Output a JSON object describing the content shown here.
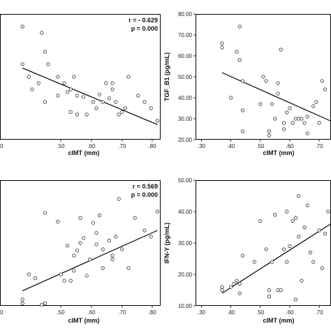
{
  "chart_data": [
    {
      "type": "scatter",
      "panel": "top-left",
      "xlabel": "cIMT (mm)",
      "ylabel": "",
      "xlim": [
        0.3,
        0.8
      ],
      "ylim": [
        0,
        100
      ],
      "xticks": [
        ".50",
        ".60",
        ".70",
        ".80"
      ],
      "yticks": [],
      "annotations": {
        "r": "r = - 0.629",
        "p": "p = 0.000"
      },
      "points": [
        [
          0.37,
          90
        ],
        [
          0.43,
          85
        ],
        [
          0.44,
          70
        ],
        [
          0.45,
          60
        ],
        [
          0.37,
          60
        ],
        [
          0.39,
          50
        ],
        [
          0.4,
          40
        ],
        [
          0.42,
          45
        ],
        [
          0.44,
          30
        ],
        [
          0.48,
          50
        ],
        [
          0.5,
          45
        ],
        [
          0.51,
          38
        ],
        [
          0.52,
          40
        ],
        [
          0.53,
          50
        ],
        [
          0.54,
          35
        ],
        [
          0.56,
          34
        ],
        [
          0.57,
          20
        ],
        [
          0.59,
          30
        ],
        [
          0.6,
          25
        ],
        [
          0.61,
          36
        ],
        [
          0.62,
          30
        ],
        [
          0.63,
          45
        ],
        [
          0.64,
          33
        ],
        [
          0.65,
          40
        ],
        [
          0.65,
          45
        ],
        [
          0.66,
          30
        ],
        [
          0.67,
          20
        ],
        [
          0.68,
          22
        ],
        [
          0.7,
          50
        ],
        [
          0.73,
          35
        ],
        [
          0.75,
          30
        ],
        [
          0.77,
          25
        ],
        [
          0.79,
          15
        ],
        [
          0.54,
          20
        ],
        [
          0.48,
          35
        ],
        [
          0.52,
          22
        ],
        [
          0.69,
          25
        ]
      ],
      "fit": {
        "x": [
          0.37,
          0.79
        ],
        "y": [
          57,
          12
        ]
      }
    },
    {
      "type": "scatter",
      "panel": "top-right",
      "xlabel": "cIMT (mm)",
      "ylabel": "TGF_B1 (pg/mL)",
      "xlim": [
        0.28,
        0.74
      ],
      "ylim": [
        20,
        80
      ],
      "xticks": [
        ".30",
        ".40",
        ".50",
        ".60",
        ".70"
      ],
      "yticks": [
        "20.00",
        "30.00",
        "40.00",
        "50.00",
        "60.00",
        "70.00",
        "80.00"
      ],
      "points": [
        [
          0.37,
          66
        ],
        [
          0.37,
          64
        ],
        [
          0.4,
          40
        ],
        [
          0.42,
          62
        ],
        [
          0.43,
          74
        ],
        [
          0.43,
          58
        ],
        [
          0.44,
          48
        ],
        [
          0.44,
          34
        ],
        [
          0.44,
          24
        ],
        [
          0.5,
          37
        ],
        [
          0.51,
          50
        ],
        [
          0.52,
          48
        ],
        [
          0.53,
          24
        ],
        [
          0.53,
          22
        ],
        [
          0.54,
          37
        ],
        [
          0.55,
          30
        ],
        [
          0.56,
          42
        ],
        [
          0.56,
          47
        ],
        [
          0.57,
          63
        ],
        [
          0.58,
          28
        ],
        [
          0.58,
          25
        ],
        [
          0.59,
          33
        ],
        [
          0.6,
          35
        ],
        [
          0.61,
          28
        ],
        [
          0.62,
          30
        ],
        [
          0.63,
          30
        ],
        [
          0.64,
          30
        ],
        [
          0.65,
          28
        ],
        [
          0.66,
          31
        ],
        [
          0.68,
          36
        ],
        [
          0.69,
          38
        ],
        [
          0.7,
          28
        ],
        [
          0.71,
          48
        ],
        [
          0.72,
          44
        ],
        [
          0.66,
          23
        ]
      ],
      "fit": {
        "x": [
          0.37,
          0.74
        ],
        "y": [
          52,
          29
        ]
      }
    },
    {
      "type": "scatter",
      "panel": "bottom-left",
      "xlabel": "cIMT (mm)",
      "ylabel": "",
      "xlim": [
        0.3,
        0.8
      ],
      "ylim": [
        0,
        100
      ],
      "xticks": [
        ".50",
        ".60",
        ".70",
        ".80"
      ],
      "yticks": [],
      "annotations": {
        "r": "r = 0.569",
        "p": "p = 0.000"
      },
      "points": [
        [
          0.37,
          5
        ],
        [
          0.37,
          2
        ],
        [
          0.39,
          25
        ],
        [
          0.41,
          22
        ],
        [
          0.43,
          1
        ],
        [
          0.44,
          2
        ],
        [
          0.44,
          74
        ],
        [
          0.48,
          67
        ],
        [
          0.49,
          25
        ],
        [
          0.5,
          20
        ],
        [
          0.51,
          48
        ],
        [
          0.52,
          20
        ],
        [
          0.53,
          40
        ],
        [
          0.53,
          28
        ],
        [
          0.54,
          44
        ],
        [
          0.55,
          50
        ],
        [
          0.56,
          54
        ],
        [
          0.57,
          24
        ],
        [
          0.58,
          37
        ],
        [
          0.59,
          66
        ],
        [
          0.6,
          58
        ],
        [
          0.6,
          49
        ],
        [
          0.61,
          72
        ],
        [
          0.62,
          45
        ],
        [
          0.62,
          30
        ],
        [
          0.64,
          52
        ],
        [
          0.65,
          40
        ],
        [
          0.65,
          37
        ],
        [
          0.66,
          55
        ],
        [
          0.67,
          85
        ],
        [
          0.68,
          45
        ],
        [
          0.7,
          30
        ],
        [
          0.72,
          70
        ],
        [
          0.75,
          60
        ],
        [
          0.77,
          55
        ],
        [
          0.79,
          75
        ],
        [
          0.55,
          70
        ]
      ],
      "fit": {
        "x": [
          0.37,
          0.79
        ],
        "y": [
          12,
          60
        ]
      }
    },
    {
      "type": "scatter",
      "panel": "bottom-right",
      "xlabel": "cIMT (mm)",
      "ylabel": "IFN-Y (pg/mL)",
      "xlim": [
        0.28,
        0.74
      ],
      "ylim": [
        10,
        50
      ],
      "xticks": [
        ".30",
        ".40",
        ".50",
        ".60",
        ".70"
      ],
      "yticks": [
        "10.00",
        "20.00",
        "30.00",
        "40.00",
        "50.00"
      ],
      "points": [
        [
          0.37,
          15
        ],
        [
          0.37,
          16
        ],
        [
          0.4,
          16
        ],
        [
          0.41,
          17
        ],
        [
          0.42,
          18
        ],
        [
          0.43,
          14
        ],
        [
          0.43,
          17
        ],
        [
          0.44,
          26
        ],
        [
          0.5,
          37
        ],
        [
          0.52,
          28
        ],
        [
          0.53,
          13
        ],
        [
          0.53,
          15
        ],
        [
          0.54,
          24
        ],
        [
          0.55,
          39
        ],
        [
          0.56,
          15
        ],
        [
          0.57,
          15
        ],
        [
          0.58,
          28
        ],
        [
          0.59,
          24
        ],
        [
          0.59,
          40
        ],
        [
          0.6,
          29
        ],
        [
          0.61,
          37
        ],
        [
          0.62,
          38
        ],
        [
          0.63,
          45
        ],
        [
          0.63,
          32
        ],
        [
          0.64,
          18
        ],
        [
          0.65,
          35
        ],
        [
          0.66,
          42
        ],
        [
          0.67,
          27
        ],
        [
          0.68,
          24
        ],
        [
          0.7,
          34
        ],
        [
          0.71,
          22
        ],
        [
          0.72,
          33
        ],
        [
          0.73,
          40
        ],
        [
          0.74,
          40
        ],
        [
          0.62,
          12
        ],
        [
          0.48,
          24
        ]
      ],
      "fit": {
        "x": [
          0.37,
          0.74
        ],
        "y": [
          14,
          36
        ]
      }
    }
  ]
}
